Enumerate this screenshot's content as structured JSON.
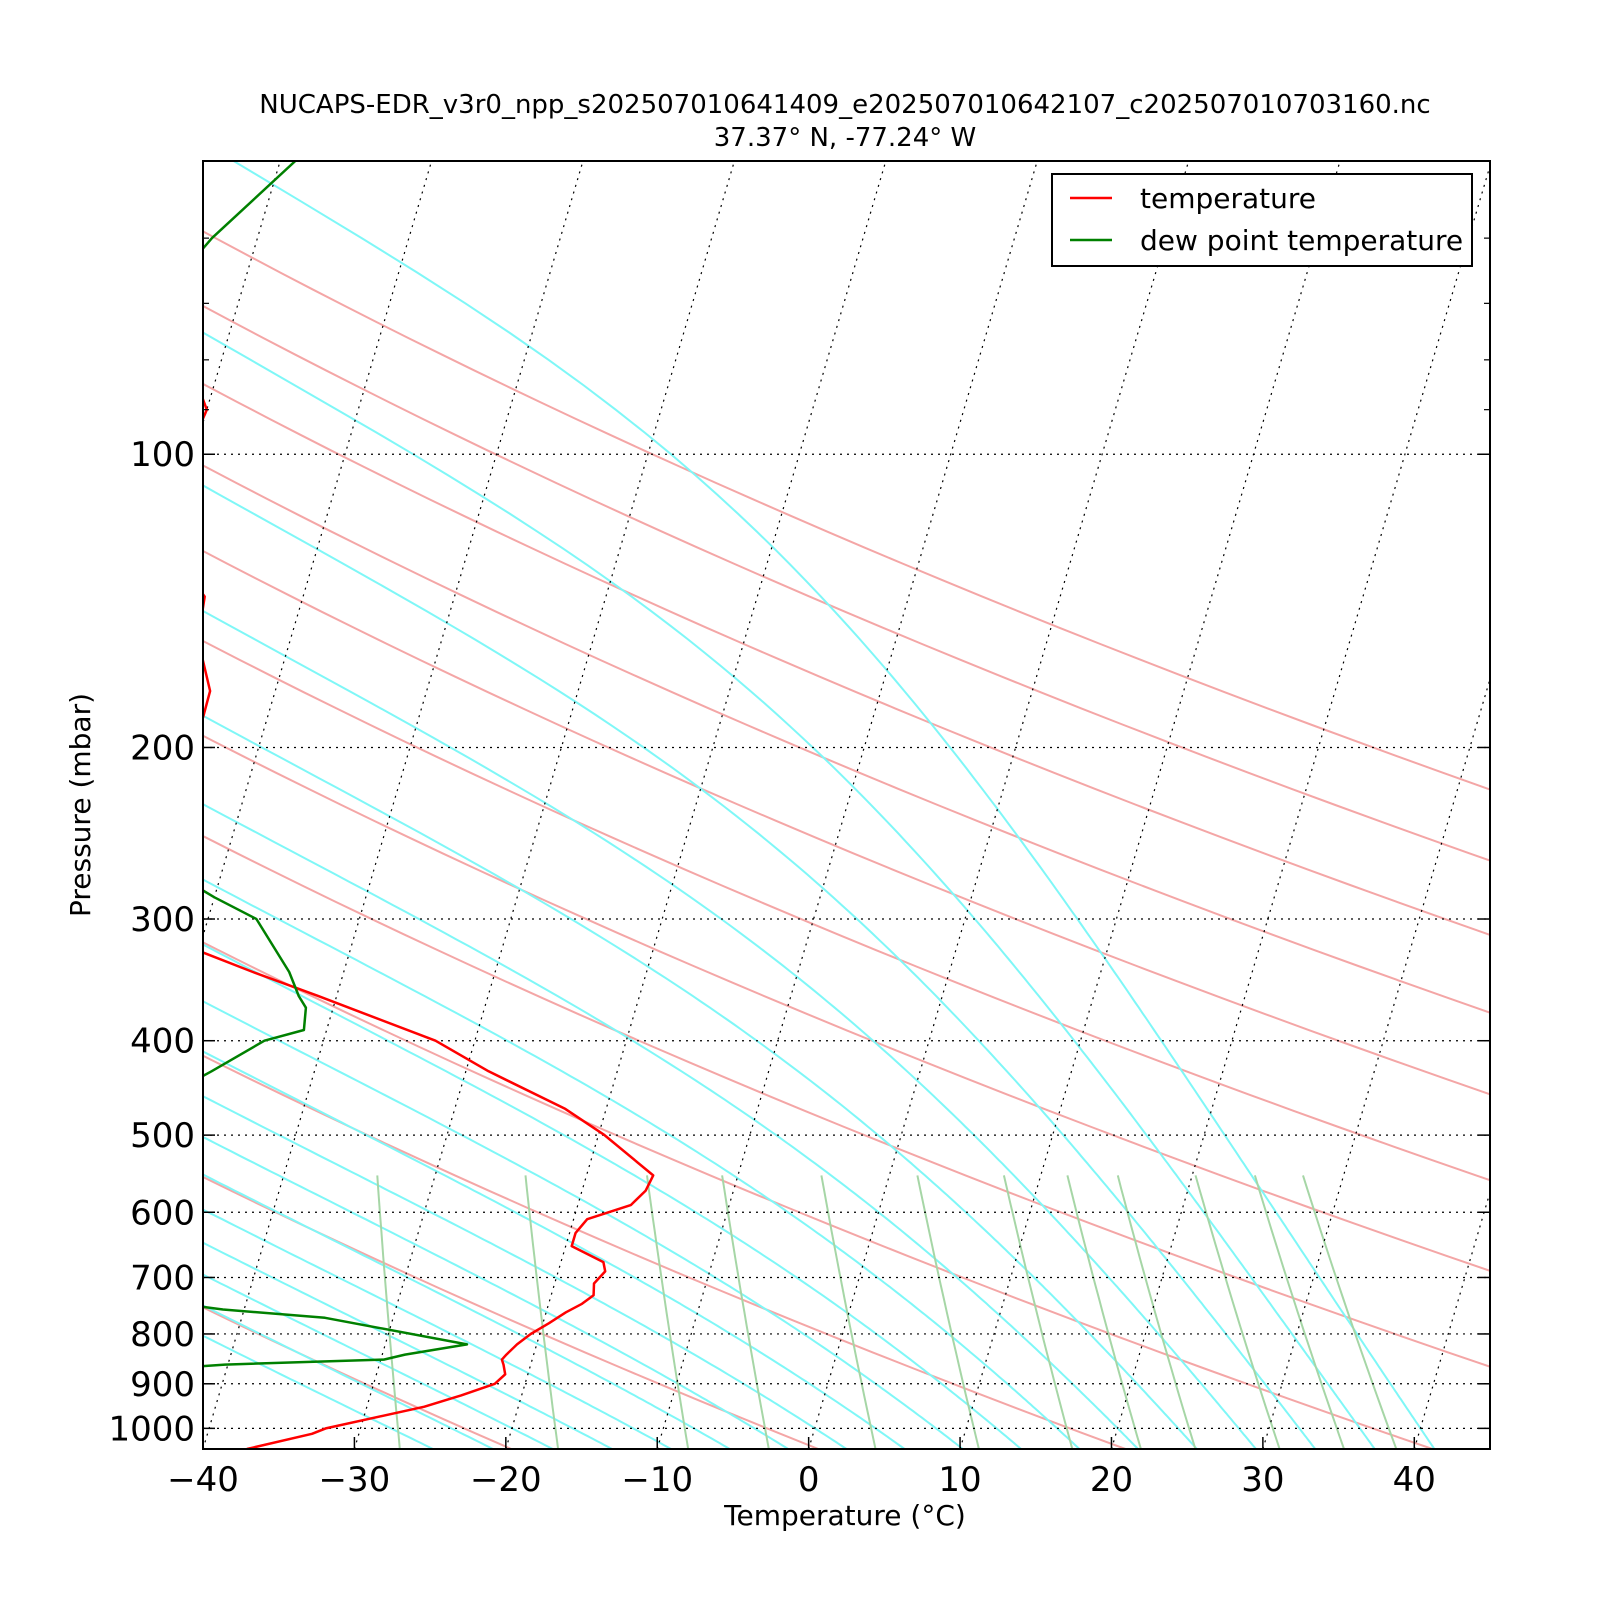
{
  "chart_data": {
    "type": "line",
    "subtype": "skew-T log-P diagram",
    "title": "NUCAPS-EDR_v3r0_npp_s202507010641409_e202507010642107_c202507010703160.nc",
    "subtitle": "37.37° N, -77.24° W",
    "xlabel": "Temperature (°C)",
    "ylabel": "Pressure (mbar)",
    "xlim": [
      -40,
      45
    ],
    "ylim": [
      1050,
      50
    ],
    "y_scale": "log",
    "x_ticks": [
      -40,
      -30,
      -20,
      -10,
      0,
      10,
      20,
      30,
      40
    ],
    "x_tick_labels": [
      "−40",
      "−30",
      "−20",
      "−10",
      "0",
      "10",
      "20",
      "30",
      "40"
    ],
    "y_ticks": [
      100,
      200,
      300,
      400,
      500,
      600,
      700,
      800,
      900,
      1000
    ],
    "y_tick_labels": [
      "100",
      "200",
      "300",
      "400",
      "500",
      "600",
      "700",
      "800",
      "900",
      "1000"
    ],
    "grid": "dotted horizontal isobars and skewed isotherms",
    "legend_position": "top-right",
    "background_lines": {
      "dry_adiabats_color": "#f4a6a6",
      "moist_adiabats_color": "#7ff7f7",
      "mixing_ratio_color": "#a6d6a6"
    },
    "series": [
      {
        "name": "temperature",
        "color": "#ff0000",
        "pressure": [
          1050,
          1013,
          1000,
          950,
          925,
          900,
          880,
          860,
          850,
          840,
          820,
          800,
          780,
          760,
          745,
          730,
          710,
          690,
          675,
          650,
          630,
          610,
          590,
          570,
          550,
          500,
          470,
          430,
          400,
          360,
          340,
          300,
          280,
          250,
          235,
          220,
          200,
          175,
          155,
          140,
          125,
          110,
          100,
          90,
          80,
          70,
          60,
          50
        ],
        "temperature": [
          -37.1,
          -33.1,
          -32.3,
          -26.2,
          -24.0,
          -22.0,
          -21.5,
          -21.8,
          -22.0,
          -21.8,
          -21.3,
          -20.6,
          -19.6,
          -18.7,
          -17.8,
          -17.2,
          -17.4,
          -16.9,
          -17.2,
          -19.6,
          -19.6,
          -19.1,
          -16.5,
          -15.8,
          -15.6,
          -19.6,
          -22.7,
          -28.5,
          -32.6,
          -41.2,
          -46.0,
          -56.0,
          -58.0,
          -60.0,
          -58.0,
          -56.4,
          -54.2,
          -54.3,
          -56.1,
          -56.5,
          -59.7,
          -60.1,
          -60.4,
          -60.0,
          -62.2,
          -64.4,
          -70.0,
          -68.6
        ]
      },
      {
        "name": "dew point temperature",
        "color": "#008000",
        "pressure": [
          1050,
          1015,
          990,
          940,
          910,
          880,
          860,
          850,
          840,
          820,
          770,
          755,
          720,
          695,
          650,
          635,
          615,
          590,
          580,
          560,
          530,
          510,
          480,
          460,
          430,
          400,
          390,
          370,
          360,
          340,
          300,
          285,
          265,
          250,
          235,
          220,
          205,
          190,
          175,
          155,
          135,
          125,
          110,
          100,
          90,
          80,
          60,
          50
        ],
        "dewpoint": [
          -62.1,
          -56.0,
          -49.6,
          -46.1,
          -47.8,
          -49.0,
          -40.2,
          -29.8,
          -28.5,
          -24.6,
          -34.5,
          -41.4,
          -52.1,
          -60.3,
          -67.9,
          -69.0,
          -69.5,
          -69.0,
          -67.6,
          -65.3,
          -60.3,
          -56.6,
          -49.3,
          -49.7,
          -46.8,
          -43.9,
          -41.5,
          -41.8,
          -42.5,
          -43.6,
          -46.8,
          -50.0,
          -54.0,
          -58.0,
          -60.0,
          -62.1,
          -67.6,
          -73.2,
          -73.5,
          -73.5,
          -73.8,
          -72.4,
          -70.5,
          -69.6,
          -69.0,
          -67.6,
          -63.0,
          -59.0
        ]
      }
    ]
  }
}
